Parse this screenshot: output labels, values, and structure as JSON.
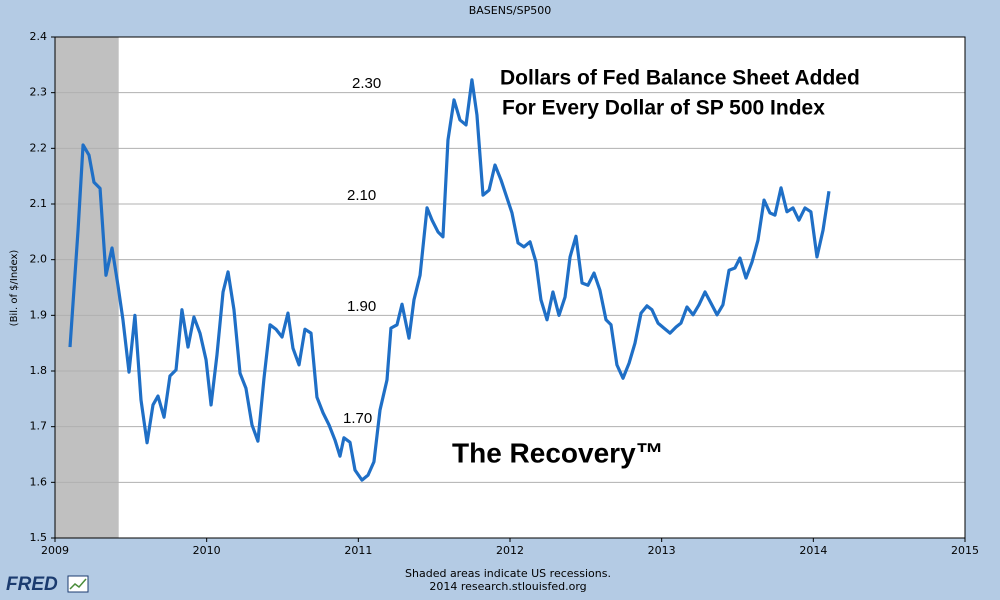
{
  "chart_data": {
    "type": "line",
    "title": "BASENS/SP500",
    "ylabel": "(Bil. of $/Index)",
    "headline": [
      "Dollars of Fed Balance Sheet Added",
      "For Every Dollar of SP 500 Index"
    ],
    "caption": "The Recovery™",
    "annotations": [
      "2.30",
      "2.10",
      "1.90",
      "1.70"
    ],
    "footer": [
      "Shaded areas indicate US recessions.",
      "2014 research.stlouisfed.org"
    ],
    "logo": "FRED",
    "xlim": [
      2009,
      2015
    ],
    "xticks": [
      2009,
      2010,
      2011,
      2012,
      2013,
      2014,
      2015
    ],
    "ylim": [
      1.5,
      2.4
    ],
    "yticks": [
      1.5,
      1.6,
      1.7,
      1.8,
      1.9,
      {
        "value": 2,
        "label": "2.0"
      },
      2.1,
      2.2,
      2.3,
      2.4
    ],
    "grid": true,
    "recessions": [
      [
        2009,
        2009.42
      ]
    ],
    "recession_color": "#c0c0c0",
    "series": [
      {
        "name": "BASENS/SP500",
        "color": "#1f6fc6",
        "x": [
          2009.099,
          2009.152,
          2009.185,
          2009.224,
          2009.257,
          2009.297,
          2009.336,
          2009.376,
          2009.415,
          2009.448,
          2009.488,
          2009.527,
          2009.567,
          2009.607,
          2009.646,
          2009.679,
          2009.719,
          2009.758,
          2009.798,
          2009.837,
          2009.877,
          2009.916,
          2009.956,
          2009.996,
          2010.029,
          2010.068,
          2010.108,
          2010.141,
          2010.18,
          2010.22,
          2010.259,
          2010.299,
          2010.338,
          2010.378,
          2010.418,
          2010.457,
          2010.497,
          2010.536,
          2010.569,
          2010.609,
          2010.648,
          2010.688,
          2010.727,
          2010.767,
          2010.807,
          2010.846,
          2010.879,
          2010.905,
          2010.945,
          2010.978,
          2011.024,
          2011.064,
          2011.103,
          2011.143,
          2011.189,
          2011.215,
          2011.255,
          2011.288,
          2011.334,
          2011.367,
          2011.407,
          2011.453,
          2011.486,
          2011.525,
          2011.558,
          2011.591,
          2011.631,
          2011.67,
          2011.71,
          2011.749,
          2011.782,
          2011.822,
          2011.862,
          2011.901,
          2011.941,
          2011.974,
          2012.013,
          2012.053,
          2012.092,
          2012.132,
          2012.171,
          2012.204,
          2012.244,
          2012.283,
          2012.323,
          2012.363,
          2012.396,
          2012.435,
          2012.475,
          2012.514,
          2012.554,
          2012.593,
          2012.633,
          2012.666,
          2012.705,
          2012.745,
          2012.785,
          2012.824,
          2012.864,
          2012.903,
          2012.936,
          2012.976,
          2013.015,
          2013.055,
          2013.095,
          2013.127,
          2013.167,
          2013.207,
          2013.246,
          2013.286,
          2013.325,
          2013.365,
          2013.404,
          2013.444,
          2013.483,
          2013.516,
          2013.556,
          2013.596,
          2013.635,
          2013.675,
          2013.714,
          2013.747,
          2013.787,
          2013.826,
          2013.866,
          2013.905,
          2013.945,
          2013.984,
          2014.024,
          2014.064,
          2014.103
        ],
        "values": [
          1.843,
          2.053,
          2.206,
          2.188,
          2.139,
          2.128,
          1.972,
          2.021,
          1.954,
          1.892,
          1.798,
          1.9,
          1.748,
          1.671,
          1.739,
          1.755,
          1.717,
          1.791,
          1.802,
          1.91,
          1.843,
          1.897,
          1.868,
          1.82,
          1.739,
          1.829,
          1.942,
          1.978,
          1.91,
          1.796,
          1.769,
          1.703,
          1.674,
          1.787,
          1.883,
          1.875,
          1.861,
          1.904,
          1.841,
          1.811,
          1.875,
          1.868,
          1.753,
          1.725,
          1.703,
          1.676,
          1.647,
          1.68,
          1.672,
          1.622,
          1.604,
          1.613,
          1.637,
          1.73,
          1.784,
          1.877,
          1.883,
          1.92,
          1.859,
          1.928,
          1.972,
          2.093,
          2.071,
          2.05,
          2.041,
          2.215,
          2.287,
          2.251,
          2.242,
          2.323,
          2.26,
          2.116,
          2.125,
          2.17,
          2.143,
          2.116,
          2.084,
          2.03,
          2.023,
          2.032,
          1.996,
          1.928,
          1.892,
          1.942,
          1.9,
          1.933,
          2.005,
          2.042,
          1.958,
          1.954,
          1.976,
          1.945,
          1.892,
          1.883,
          1.811,
          1.787,
          1.814,
          1.85,
          1.904,
          1.917,
          1.91,
          1.886,
          1.877,
          1.868,
          1.879,
          1.886,
          1.915,
          1.901,
          1.919,
          1.942,
          1.922,
          1.901,
          1.919,
          1.981,
          1.985,
          2.003,
          1.967,
          1.996,
          2.035,
          2.107,
          2.084,
          2.08,
          2.129,
          2.086,
          2.093,
          2.071,
          2.093,
          2.086,
          2.005,
          2.053,
          2.123
        ]
      }
    ]
  }
}
